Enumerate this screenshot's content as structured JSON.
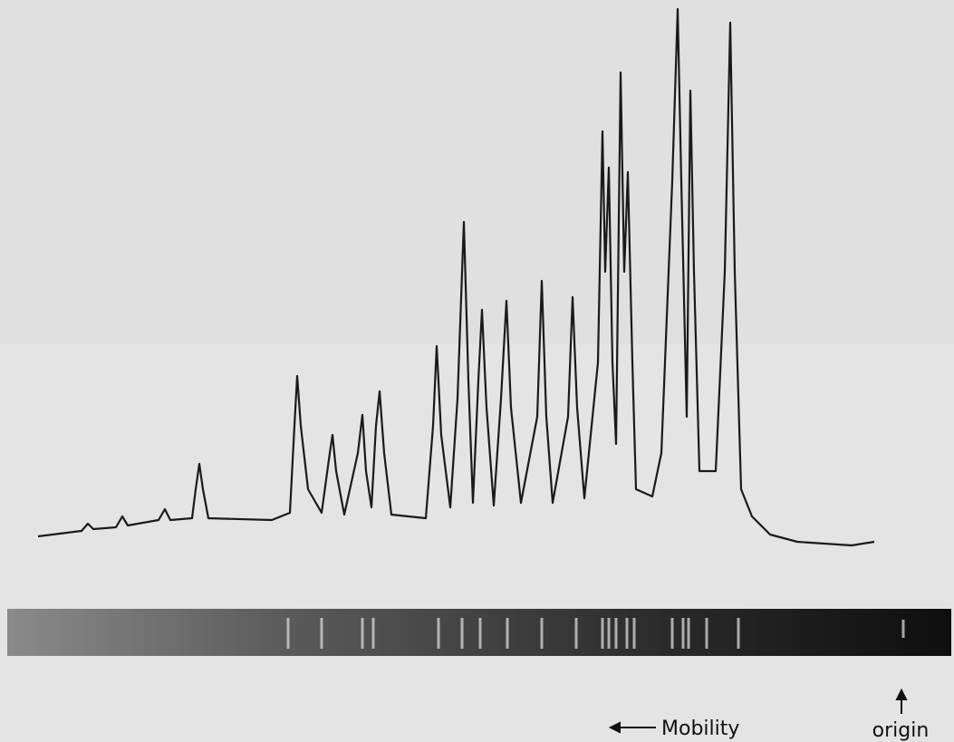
{
  "figure": {
    "labels": {
      "mobility": "Mobility",
      "origin": "origin"
    }
  }
}
